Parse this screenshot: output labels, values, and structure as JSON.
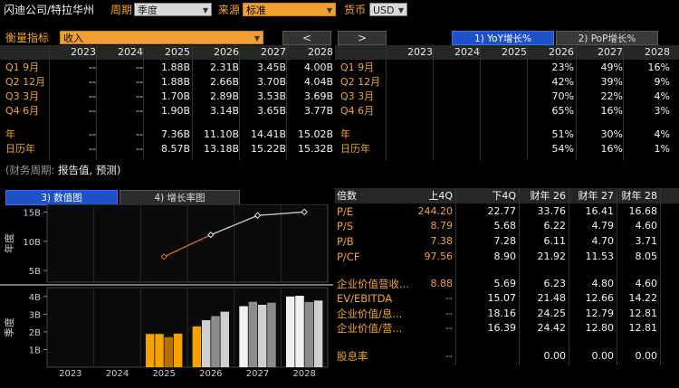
{
  "header": {
    "company": "闪迪公司/特拉华州",
    "period_label": "周期",
    "period_value": "季度",
    "source_label": "来源",
    "source_value": "标准",
    "currency_label": "货币",
    "currency_value": "USD"
  },
  "metric": {
    "label": "衡量指标",
    "value": "收入",
    "prev_btn": "<",
    "next_btn": ">",
    "tab_yoy": "1) YoY增长%",
    "tab_pop": "2) PoP增长%"
  },
  "left_table": {
    "columns": [
      "2023",
      "2024",
      "2025",
      "2026",
      "2027",
      "2028"
    ],
    "rows": [
      {
        "label": "Q1 9月",
        "values": [
          "--",
          "--",
          "1.88B",
          "2.31B",
          "3.45B",
          "4.00B"
        ]
      },
      {
        "label": "Q2 12月",
        "values": [
          "--",
          "--",
          "1.88B",
          "2.66B",
          "3.70B",
          "4.04B"
        ]
      },
      {
        "label": "Q3 3月",
        "values": [
          "--",
          "--",
          "1.70B",
          "2.89B",
          "3.53B",
          "3.69B"
        ]
      },
      {
        "label": "Q4 6月",
        "values": [
          "--",
          "--",
          "1.90B",
          "3.14B",
          "3.65B",
          "3.77B"
        ]
      },
      {
        "label": "年",
        "values": [
          "--",
          "--",
          "7.36B",
          "11.10B",
          "14.41B",
          "15.02B"
        ]
      },
      {
        "label": "日历年",
        "values": [
          "--",
          "--",
          "8.57B",
          "13.18B",
          "15.22B",
          "15.32B"
        ]
      }
    ]
  },
  "right_table": {
    "columns": [
      "2023",
      "2024",
      "2025",
      "2026",
      "2027",
      "2028"
    ],
    "rows": [
      {
        "label": "Q1 9月",
        "values": [
          "",
          "",
          "",
          "23%",
          "49%",
          "16%"
        ]
      },
      {
        "label": "Q2 12月",
        "values": [
          "",
          "",
          "",
          "42%",
          "39%",
          "9%"
        ]
      },
      {
        "label": "Q3 3月",
        "values": [
          "",
          "",
          "",
          "70%",
          "22%",
          "4%"
        ]
      },
      {
        "label": "Q4 6月",
        "values": [
          "",
          "",
          "",
          "65%",
          "16%",
          "3%"
        ]
      },
      {
        "label": "年",
        "values": [
          "",
          "",
          "",
          "51%",
          "30%",
          "4%"
        ]
      },
      {
        "label": "日历年",
        "values": [
          "",
          "",
          "",
          "54%",
          "16%",
          "1%"
        ]
      }
    ]
  },
  "footnote": {
    "prefix": "(财务周期:",
    "reported": "报告值,",
    "forecast": "预测)"
  },
  "chart_tabs": {
    "value_tab": "3) 数值图",
    "growth_tab": "4) 增长率图"
  },
  "chart_data": [
    {
      "type": "line",
      "ylabel": "年度",
      "x": [
        "2025",
        "2026",
        "2027",
        "2028"
      ],
      "series": [
        {
          "values": [
            7.36,
            11.1,
            14.41,
            15.02
          ]
        }
      ],
      "yticks": [
        "5B",
        "10B",
        "15B"
      ],
      "ylim": [
        3,
        16
      ]
    },
    {
      "type": "bar",
      "ylabel": "季度",
      "categories": [
        "2023",
        "2024",
        "2025",
        "2026",
        "2027",
        "2028"
      ],
      "series": [
        {
          "values": [
            null,
            null,
            1.88,
            2.31,
            3.45,
            4.0
          ]
        },
        {
          "values": [
            null,
            null,
            1.88,
            2.66,
            3.7,
            4.04
          ]
        },
        {
          "values": [
            null,
            null,
            1.7,
            2.89,
            3.53,
            3.69
          ]
        },
        {
          "values": [
            null,
            null,
            1.9,
            3.14,
            3.65,
            3.77
          ]
        }
      ],
      "yticks": [
        "1B",
        "2B",
        "3B",
        "4B"
      ],
      "ylim": [
        0,
        4.4
      ]
    }
  ],
  "ratios": {
    "header": [
      "倍数",
      "上4Q",
      "下4Q",
      "财年 26",
      "财年 27",
      "财年 28"
    ],
    "rows": [
      {
        "label": "P/E",
        "values": [
          "244.20",
          "22.77",
          "33.76",
          "16.41",
          "16.68"
        ]
      },
      {
        "label": "P/S",
        "values": [
          "8.79",
          "5.68",
          "6.22",
          "4.79",
          "4.60"
        ]
      },
      {
        "label": "P/B",
        "values": [
          "7.38",
          "7.28",
          "6.11",
          "4.70",
          "3.71"
        ]
      },
      {
        "label": "P/CF",
        "values": [
          "97.56",
          "8.90",
          "21.92",
          "11.53",
          "8.05"
        ]
      },
      {
        "label": "企业价值营收...",
        "values": [
          "8.88",
          "5.69",
          "6.23",
          "4.80",
          "4.60"
        ]
      },
      {
        "label": "EV/EBITDA",
        "values": [
          "--",
          "15.07",
          "21.48",
          "12.66",
          "14.22"
        ]
      },
      {
        "label": "企业价值/息...",
        "values": [
          "--",
          "18.16",
          "24.25",
          "12.79",
          "12.81"
        ]
      },
      {
        "label": "企业价值/营...",
        "values": [
          "--",
          "16.39",
          "24.42",
          "12.80",
          "12.81"
        ]
      },
      {
        "label": "股息率",
        "values": [
          "--",
          "",
          "0.00",
          "0.00",
          "0.00"
        ]
      }
    ]
  },
  "colors": {
    "accent": "#f5a623",
    "bar_orange": "#f5a100",
    "bar_gray_1": "#6b6b6b",
    "bar_gray_2": "#8c8c8c",
    "bar_light": "#d0d0d0",
    "bar_white": "#f0f0f0",
    "tab_blue": "#1e50c8"
  }
}
